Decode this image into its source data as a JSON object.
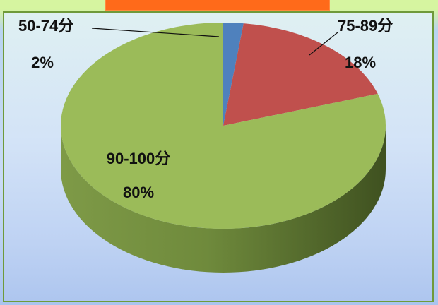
{
  "chart_data": {
    "type": "pie",
    "style": "3d",
    "slices": [
      {
        "label": "50-74分",
        "value": 2,
        "percent_label": "2%",
        "color": "#4f81bd"
      },
      {
        "label": "75-89分",
        "value": 18,
        "percent_label": "18%",
        "color": "#c0504d"
      },
      {
        "label": "90-100分",
        "value": 80,
        "percent_label": "80%",
        "color": "#9bbb59"
      }
    ],
    "title": "",
    "legend": "none"
  },
  "colors": {
    "title_bar": "#ff6a1a",
    "background": "#c9dbf5",
    "frame_border": "#6f9a3a"
  }
}
